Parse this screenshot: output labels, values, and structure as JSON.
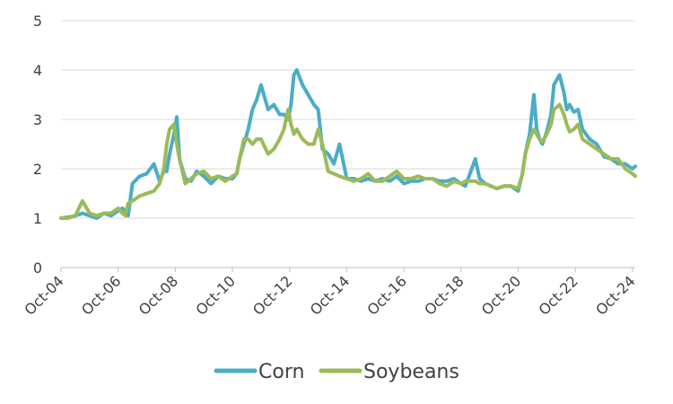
{
  "chart_data": {
    "type": "line",
    "title": "",
    "xlabel": "",
    "ylabel": "",
    "ylim": [
      0,
      5
    ],
    "yticks": [
      "0",
      "1",
      "2",
      "3",
      "4",
      "5"
    ],
    "xticks": [
      "Oct-04",
      "Oct-06",
      "Oct-08",
      "Oct-10",
      "Oct-12",
      "Oct-14",
      "Oct-16",
      "Oct-18",
      "Oct-20",
      "Oct-22",
      "Oct-24"
    ],
    "x_range": [
      2004.75,
      2024.85
    ],
    "grid": "horizontal",
    "legend_position": "bottom",
    "series": [
      {
        "name": "Corn",
        "color": "#4BACC6",
        "x": [
          2004.75,
          2005.0,
          2005.25,
          2005.5,
          2005.75,
          2006.0,
          2006.25,
          2006.5,
          2006.75,
          2006.9,
          2007.0,
          2007.1,
          2007.25,
          2007.5,
          2007.75,
          2008.0,
          2008.2,
          2008.35,
          2008.45,
          2008.55,
          2008.7,
          2008.8,
          2008.9,
          2009.1,
          2009.3,
          2009.5,
          2009.75,
          2010.0,
          2010.25,
          2010.5,
          2010.75,
          2010.9,
          2011.0,
          2011.15,
          2011.3,
          2011.45,
          2011.6,
          2011.75,
          2012.0,
          2012.2,
          2012.4,
          2012.55,
          2012.7,
          2012.8,
          2012.9,
          2013.0,
          2013.2,
          2013.4,
          2013.6,
          2013.75,
          2013.9,
          2014.1,
          2014.3,
          2014.5,
          2014.75,
          2015.0,
          2015.25,
          2015.5,
          2015.75,
          2016.0,
          2016.25,
          2016.5,
          2016.75,
          2017.0,
          2017.25,
          2017.5,
          2017.75,
          2018.0,
          2018.25,
          2018.5,
          2018.75,
          2018.9,
          2019.0,
          2019.25,
          2019.4,
          2019.6,
          2019.8,
          2020.0,
          2020.25,
          2020.5,
          2020.75,
          2020.9,
          2021.0,
          2021.15,
          2021.3,
          2021.4,
          2021.5,
          2021.6,
          2021.75,
          2021.9,
          2022.0,
          2022.2,
          2022.35,
          2022.45,
          2022.55,
          2022.7,
          2022.85,
          2023.0,
          2023.25,
          2023.5,
          2023.75,
          2024.0,
          2024.25,
          2024.5,
          2024.75,
          2024.85
        ],
        "values": [
          1.0,
          1.02,
          1.05,
          1.1,
          1.05,
          1.0,
          1.1,
          1.05,
          1.15,
          1.2,
          1.15,
          1.05,
          1.7,
          1.85,
          1.9,
          2.1,
          1.75,
          1.95,
          1.95,
          2.3,
          2.7,
          3.05,
          2.2,
          1.8,
          1.75,
          1.95,
          1.85,
          1.7,
          1.85,
          1.8,
          1.8,
          1.9,
          2.2,
          2.5,
          2.8,
          3.2,
          3.4,
          3.7,
          3.2,
          3.3,
          3.1,
          3.1,
          3.0,
          3.3,
          3.9,
          4.0,
          3.7,
          3.5,
          3.3,
          3.2,
          2.4,
          2.3,
          2.1,
          2.5,
          1.8,
          1.8,
          1.75,
          1.8,
          1.75,
          1.8,
          1.75,
          1.85,
          1.7,
          1.75,
          1.75,
          1.8,
          1.8,
          1.75,
          1.75,
          1.8,
          1.7,
          1.65,
          1.8,
          2.2,
          1.8,
          1.7,
          1.65,
          1.6,
          1.65,
          1.65,
          1.55,
          1.9,
          2.3,
          2.7,
          3.5,
          2.8,
          2.6,
          2.5,
          2.75,
          3.1,
          3.7,
          3.9,
          3.55,
          3.2,
          3.3,
          3.15,
          3.2,
          2.8,
          2.6,
          2.5,
          2.25,
          2.2,
          2.1,
          2.1,
          2.0,
          2.05
        ]
      },
      {
        "name": "Soybeans",
        "color": "#9BBB59",
        "x": [
          2004.75,
          2005.0,
          2005.25,
          2005.5,
          2005.75,
          2006.0,
          2006.25,
          2006.5,
          2006.75,
          2006.9,
          2007.0,
          2007.1,
          2007.25,
          2007.5,
          2007.75,
          2008.0,
          2008.2,
          2008.35,
          2008.45,
          2008.55,
          2008.7,
          2008.8,
          2008.9,
          2009.1,
          2009.3,
          2009.5,
          2009.75,
          2010.0,
          2010.25,
          2010.5,
          2010.75,
          2010.9,
          2011.0,
          2011.15,
          2011.3,
          2011.45,
          2011.6,
          2011.75,
          2012.0,
          2012.2,
          2012.4,
          2012.55,
          2012.7,
          2012.8,
          2012.9,
          2013.0,
          2013.2,
          2013.4,
          2013.6,
          2013.75,
          2013.9,
          2014.1,
          2014.3,
          2014.5,
          2014.75,
          2015.0,
          2015.25,
          2015.5,
          2015.75,
          2016.0,
          2016.25,
          2016.5,
          2016.75,
          2017.0,
          2017.25,
          2017.5,
          2017.75,
          2018.0,
          2018.25,
          2018.5,
          2018.75,
          2018.9,
          2019.0,
          2019.25,
          2019.4,
          2019.6,
          2019.8,
          2020.0,
          2020.25,
          2020.5,
          2020.75,
          2020.9,
          2021.0,
          2021.15,
          2021.3,
          2021.4,
          2021.5,
          2021.6,
          2021.75,
          2021.9,
          2022.0,
          2022.2,
          2022.35,
          2022.45,
          2022.55,
          2022.7,
          2022.85,
          2023.0,
          2023.25,
          2023.5,
          2023.75,
          2024.0,
          2024.25,
          2024.5,
          2024.75,
          2024.85
        ],
        "values": [
          1.0,
          1.0,
          1.05,
          1.35,
          1.1,
          1.05,
          1.1,
          1.1,
          1.2,
          1.1,
          1.05,
          1.3,
          1.35,
          1.45,
          1.5,
          1.55,
          1.7,
          2.0,
          2.5,
          2.8,
          2.9,
          2.5,
          2.2,
          1.7,
          1.8,
          1.9,
          1.95,
          1.8,
          1.85,
          1.75,
          1.85,
          1.9,
          2.2,
          2.6,
          2.6,
          2.5,
          2.6,
          2.6,
          2.3,
          2.4,
          2.6,
          2.8,
          3.2,
          2.9,
          2.7,
          2.8,
          2.6,
          2.5,
          2.5,
          2.8,
          2.5,
          1.95,
          1.9,
          1.85,
          1.8,
          1.75,
          1.8,
          1.9,
          1.75,
          1.75,
          1.85,
          1.95,
          1.8,
          1.8,
          1.85,
          1.8,
          1.8,
          1.7,
          1.65,
          1.75,
          1.7,
          1.75,
          1.75,
          1.75,
          1.7,
          1.7,
          1.65,
          1.6,
          1.65,
          1.65,
          1.6,
          1.9,
          2.3,
          2.6,
          2.8,
          2.7,
          2.6,
          2.55,
          2.7,
          2.9,
          3.2,
          3.3,
          3.1,
          2.9,
          2.75,
          2.8,
          2.9,
          2.6,
          2.5,
          2.4,
          2.3,
          2.2,
          2.2,
          2.0,
          1.9,
          1.85
        ]
      }
    ]
  }
}
